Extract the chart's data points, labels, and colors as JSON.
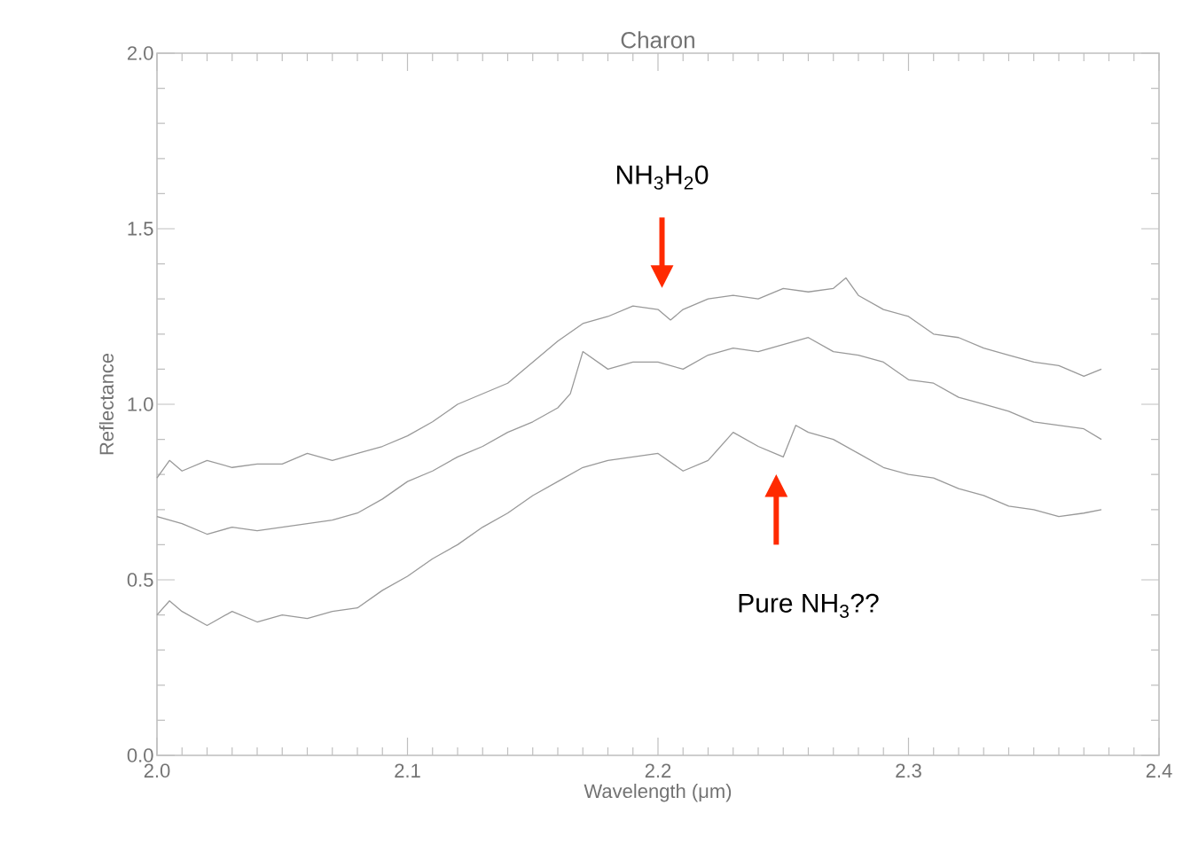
{
  "chart_data": {
    "type": "line",
    "title": "Charon",
    "xlabel": "Wavelength (μm)",
    "ylabel": "Reflectance",
    "xlim": [
      2.0,
      2.4
    ],
    "ylim": [
      0.0,
      2.0
    ],
    "xticks": [
      {
        "value": 2.0,
        "label": "2.0"
      },
      {
        "value": 2.1,
        "label": "2.1"
      },
      {
        "value": 2.2,
        "label": "2.2"
      },
      {
        "value": 2.3,
        "label": "2.3"
      },
      {
        "value": 2.4,
        "label": "2.4"
      }
    ],
    "yticks": [
      {
        "value": 0.0,
        "label": "0.0"
      },
      {
        "value": 0.5,
        "label": "0.5"
      },
      {
        "value": 1.0,
        "label": "1.0"
      },
      {
        "value": 1.5,
        "label": "1.5"
      },
      {
        "value": 2.0,
        "label": "2.0"
      }
    ],
    "grid": false,
    "marker": "none",
    "line_style": "solid",
    "series": [
      {
        "color": "#999999",
        "x": [
          2.0,
          2.005,
          2.01,
          2.02,
          2.03,
          2.04,
          2.05,
          2.06,
          2.07,
          2.08,
          2.09,
          2.1,
          2.11,
          2.12,
          2.13,
          2.14,
          2.15,
          2.16,
          2.17,
          2.18,
          2.19,
          2.2,
          2.205,
          2.21,
          2.22,
          2.23,
          2.24,
          2.25,
          2.26,
          2.27,
          2.275,
          2.28,
          2.29,
          2.3,
          2.31,
          2.32,
          2.33,
          2.34,
          2.35,
          2.36,
          2.37,
          2.377
        ],
        "values": [
          0.79,
          0.84,
          0.81,
          0.84,
          0.82,
          0.83,
          0.83,
          0.86,
          0.84,
          0.86,
          0.88,
          0.91,
          0.95,
          1.0,
          1.03,
          1.06,
          1.12,
          1.18,
          1.23,
          1.25,
          1.28,
          1.27,
          1.24,
          1.27,
          1.3,
          1.31,
          1.3,
          1.33,
          1.32,
          1.33,
          1.36,
          1.31,
          1.27,
          1.25,
          1.2,
          1.19,
          1.16,
          1.14,
          1.12,
          1.11,
          1.08,
          1.1
        ]
      },
      {
        "color": "#999999",
        "x": [
          2.0,
          2.01,
          2.02,
          2.03,
          2.04,
          2.05,
          2.06,
          2.07,
          2.08,
          2.09,
          2.1,
          2.11,
          2.12,
          2.13,
          2.14,
          2.15,
          2.16,
          2.165,
          2.17,
          2.18,
          2.19,
          2.2,
          2.21,
          2.22,
          2.23,
          2.24,
          2.25,
          2.26,
          2.27,
          2.28,
          2.29,
          2.3,
          2.31,
          2.32,
          2.33,
          2.34,
          2.35,
          2.36,
          2.37,
          2.377
        ],
        "values": [
          0.68,
          0.66,
          0.63,
          0.65,
          0.64,
          0.65,
          0.66,
          0.67,
          0.69,
          0.73,
          0.78,
          0.81,
          0.85,
          0.88,
          0.92,
          0.95,
          0.99,
          1.03,
          1.15,
          1.1,
          1.12,
          1.12,
          1.1,
          1.14,
          1.16,
          1.15,
          1.17,
          1.19,
          1.15,
          1.14,
          1.12,
          1.07,
          1.06,
          1.02,
          1.0,
          0.98,
          0.95,
          0.94,
          0.93,
          0.9
        ]
      },
      {
        "color": "#999999",
        "x": [
          2.0,
          2.005,
          2.01,
          2.02,
          2.03,
          2.04,
          2.05,
          2.06,
          2.07,
          2.08,
          2.09,
          2.1,
          2.11,
          2.12,
          2.13,
          2.14,
          2.15,
          2.16,
          2.17,
          2.18,
          2.19,
          2.2,
          2.21,
          2.22,
          2.23,
          2.24,
          2.25,
          2.255,
          2.26,
          2.27,
          2.28,
          2.29,
          2.3,
          2.31,
          2.32,
          2.33,
          2.34,
          2.35,
          2.36,
          2.37,
          2.377
        ],
        "values": [
          0.4,
          0.44,
          0.41,
          0.37,
          0.41,
          0.38,
          0.4,
          0.39,
          0.41,
          0.42,
          0.47,
          0.51,
          0.56,
          0.6,
          0.65,
          0.69,
          0.74,
          0.78,
          0.82,
          0.84,
          0.85,
          0.86,
          0.81,
          0.84,
          0.92,
          0.88,
          0.85,
          0.94,
          0.92,
          0.9,
          0.86,
          0.82,
          0.8,
          0.79,
          0.76,
          0.74,
          0.71,
          0.7,
          0.68,
          0.69,
          0.7
        ]
      }
    ],
    "annotations": [
      "NH$_{3}$H$_{2}$0",
      "Pure NH$_{3}$??"
    ]
  }
}
